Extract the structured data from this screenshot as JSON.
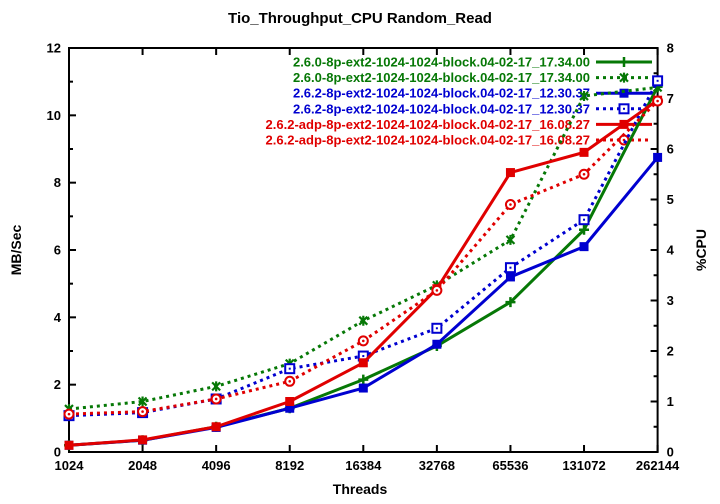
{
  "page": {
    "background": "#ffffff"
  },
  "chart_data": {
    "type": "line",
    "title": "Tio_Throughput_CPU Random_Read",
    "xlabel": "Threads",
    "ylabel_left": "MB/Sec",
    "ylabel_right": "%CPU",
    "x_categories": [
      "1024",
      "2048",
      "4096",
      "8192",
      "16384",
      "32768",
      "65536",
      "131072",
      "262144"
    ],
    "x_scale": "log2-categories",
    "ylim_left": [
      0,
      12
    ],
    "yticks_left": [
      0,
      2,
      4,
      6,
      8,
      10,
      12
    ],
    "ylim_right": [
      0,
      8
    ],
    "yticks_right": [
      0,
      1,
      2,
      3,
      4,
      5,
      6,
      7,
      8
    ],
    "grid": false,
    "legend_position": "top-right-inside",
    "axis_color": "#000000",
    "series": [
      {
        "name": "2.6.0-8p-ext2-1024-1024-block.04-02-17_17.34.00",
        "measure": "MB/Sec",
        "axis": "left",
        "color": "#067806",
        "line_style": "solid",
        "marker": "plus",
        "values": [
          0.2,
          0.35,
          0.75,
          1.3,
          2.15,
          3.15,
          4.45,
          6.6,
          10.85
        ]
      },
      {
        "name": "2.6.0-8p-ext2-1024-1024-block.04-02-17_17.34.00",
        "measure": "%CPU",
        "axis": "right",
        "color": "#067806",
        "line_style": "dotted",
        "marker": "star",
        "values": [
          0.85,
          1.0,
          1.3,
          1.75,
          2.6,
          3.3,
          4.2,
          7.05,
          7.22
        ]
      },
      {
        "name": "2.6.2-8p-ext2-1024-1024-block.04-02-17_12.30.37",
        "measure": "MB/Sec",
        "axis": "left",
        "color": "#0000d0",
        "line_style": "solid",
        "marker": "square-filled",
        "values": [
          0.2,
          0.35,
          0.73,
          1.3,
          1.9,
          3.2,
          5.2,
          6.1,
          8.75
        ]
      },
      {
        "name": "2.6.2-8p-ext2-1024-1024-block.04-02-17_12.30.37",
        "measure": "%CPU",
        "axis": "right",
        "color": "#0000d0",
        "line_style": "dotted",
        "marker": "square-open",
        "values": [
          0.72,
          0.78,
          1.05,
          1.65,
          1.9,
          2.45,
          3.65,
          4.6,
          7.35
        ]
      },
      {
        "name": "2.6.2-adp-8p-ext2-1024-1024-block.04-02-17_16.08.27",
        "measure": "MB/Sec",
        "axis": "left",
        "color": "#e00000",
        "line_style": "solid",
        "marker": "square-filled",
        "values": [
          0.2,
          0.36,
          0.75,
          1.5,
          2.65,
          4.85,
          8.3,
          8.9,
          10.45
        ]
      },
      {
        "name": "2.6.2-adp-8p-ext2-1024-1024-block.04-02-17_16.08.27",
        "measure": "%CPU",
        "axis": "right",
        "color": "#e00000",
        "line_style": "dotted",
        "marker": "circle-open",
        "values": [
          0.75,
          0.8,
          1.05,
          1.4,
          2.2,
          3.2,
          4.9,
          5.5,
          6.95
        ]
      }
    ]
  }
}
